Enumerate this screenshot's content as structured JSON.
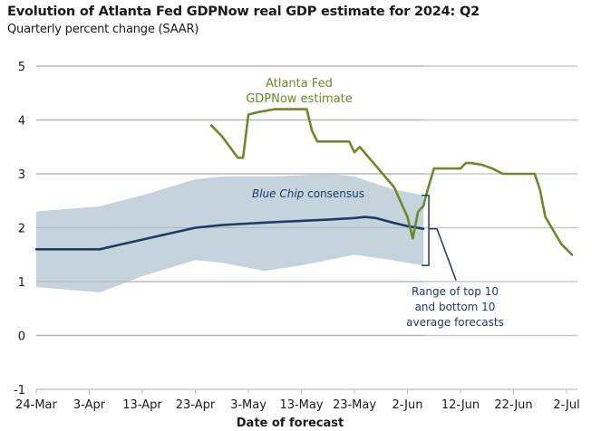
{
  "chart_data": {
    "type": "line",
    "title": "Evolution of Atlanta Fed GDPNow real GDP estimate for 2024: Q2",
    "subtitle": "Quarterly percent change (SAAR)",
    "xlabel": "Date of forecast",
    "ylabel": "",
    "ylim": [
      -1,
      5
    ],
    "yticks": [
      -1,
      0,
      1,
      2,
      3,
      4,
      5
    ],
    "x_start_date": "24-Mar",
    "x_unit": "days since 24-Mar",
    "xlim": [
      0,
      102
    ],
    "xticks": [
      {
        "day": 0,
        "label": "24-Mar"
      },
      {
        "day": 10,
        "label": "3-Apr"
      },
      {
        "day": 20,
        "label": "13-Apr"
      },
      {
        "day": 30,
        "label": "23-Apr"
      },
      {
        "day": 40,
        "label": "3-May"
      },
      {
        "day": 50,
        "label": "13-May"
      },
      {
        "day": 60,
        "label": "23-May"
      },
      {
        "day": 70,
        "label": "2-Jun"
      },
      {
        "day": 80,
        "label": "12-Jun"
      },
      {
        "day": 90,
        "label": "22-Jun"
      },
      {
        "day": 100,
        "label": "2-Jul"
      }
    ],
    "grid": "horizontal",
    "series": [
      {
        "name": "Atlanta Fed GDPNow estimate",
        "color": "#6a8a2a",
        "points": [
          [
            33,
            3.9
          ],
          [
            35,
            3.7
          ],
          [
            38,
            3.3
          ],
          [
            39,
            3.3
          ],
          [
            40,
            4.1
          ],
          [
            42,
            4.15
          ],
          [
            45,
            4.2
          ],
          [
            51,
            4.2
          ],
          [
            52,
            3.8
          ],
          [
            53,
            3.6
          ],
          [
            59,
            3.6
          ],
          [
            60,
            3.4
          ],
          [
            61,
            3.5
          ],
          [
            67.5,
            2.75
          ],
          [
            70,
            2.2
          ],
          [
            71,
            1.8
          ],
          [
            72,
            2.3
          ],
          [
            73,
            2.4
          ],
          [
            73.5,
            2.6
          ],
          [
            75,
            3.1
          ],
          [
            80,
            3.1
          ],
          [
            81,
            3.2
          ],
          [
            82,
            3.2
          ],
          [
            84,
            3.17
          ],
          [
            86,
            3.1
          ],
          [
            88,
            3.0
          ],
          [
            94,
            3.0
          ],
          [
            95,
            2.7
          ],
          [
            96,
            2.2
          ],
          [
            97.5,
            1.95
          ],
          [
            99,
            1.7
          ],
          [
            101,
            1.5
          ]
        ]
      },
      {
        "name": "Blue Chip consensus",
        "color": "#1f3b66",
        "points": [
          [
            0,
            1.6
          ],
          [
            12,
            1.6
          ],
          [
            20,
            1.78
          ],
          [
            30,
            2.0
          ],
          [
            35,
            2.05
          ],
          [
            44,
            2.1
          ],
          [
            55,
            2.15
          ],
          [
            60,
            2.18
          ],
          [
            62,
            2.2
          ],
          [
            64,
            2.18
          ],
          [
            67,
            2.1
          ],
          [
            70,
            2.03
          ],
          [
            73,
            1.98
          ]
        ]
      }
    ],
    "band": {
      "name": "Range of top 10 and bottom 10 average forecasts",
      "color": "#c5d3dc",
      "upper": [
        [
          0,
          2.3
        ],
        [
          12,
          2.4
        ],
        [
          20,
          2.6
        ],
        [
          30,
          2.9
        ],
        [
          35,
          2.95
        ],
        [
          45,
          2.95
        ],
        [
          55,
          3.0
        ],
        [
          60,
          2.95
        ],
        [
          67,
          2.72
        ],
        [
          73,
          2.6
        ]
      ],
      "lower": [
        [
          0,
          0.9
        ],
        [
          12,
          0.8
        ],
        [
          20,
          1.1
        ],
        [
          30,
          1.4
        ],
        [
          35,
          1.35
        ],
        [
          43,
          1.2
        ],
        [
          50,
          1.3
        ],
        [
          60,
          1.5
        ],
        [
          67,
          1.4
        ],
        [
          73,
          1.3
        ]
      ]
    },
    "annotations": [
      {
        "text_lines": [
          "Atlanta Fed",
          "GDPNow estimate"
        ],
        "series": "Atlanta Fed GDPNow estimate"
      },
      {
        "text_italic": "Blue Chip",
        "text_regular": " consensus",
        "series": "Blue Chip consensus"
      },
      {
        "text_lines": [
          "Range of top 10",
          "and bottom 10",
          "average forecasts"
        ],
        "series": "band"
      }
    ]
  }
}
